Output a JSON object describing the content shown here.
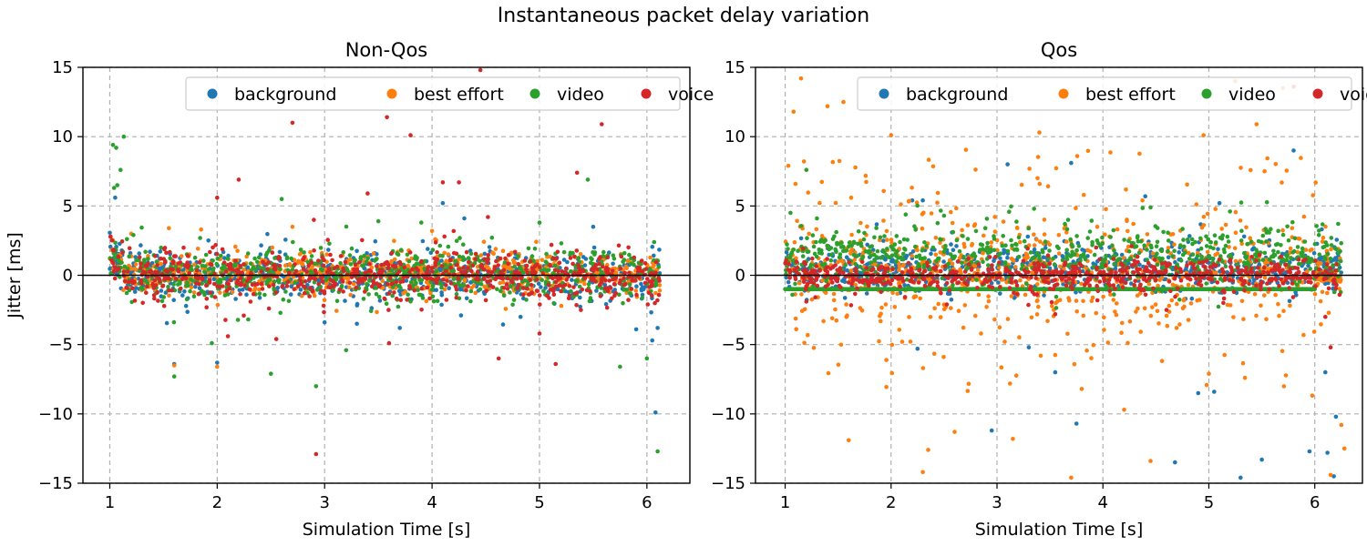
{
  "figure": {
    "suptitle": "Instantaneous packet delay variation"
  },
  "colors": {
    "background": "#1f77b4",
    "best_effort": "#ff7f0e",
    "video": "#2ca02c",
    "voice": "#d62728"
  },
  "chart_data": [
    {
      "type": "scatter",
      "title": "Non-Qos",
      "xlabel": "Simulation Time [s]",
      "ylabel": "Jitter [ms]",
      "xlim": [
        0.75,
        6.4
      ],
      "ylim": [
        -15,
        15
      ],
      "xticks": [
        "1",
        "2",
        "3",
        "4",
        "5",
        "6"
      ],
      "yticks": [
        "15",
        "10",
        "5",
        "0",
        "−5",
        "−10",
        "−15"
      ],
      "grid": true,
      "legend_position": "top-right",
      "legend": [
        "background",
        "best effort",
        "video",
        "voice"
      ],
      "x_range": [
        1.0,
        6.12
      ],
      "series": [
        {
          "name": "background",
          "color": "#1f77b4",
          "band": {
            "center": 0.0,
            "spread": 1.6
          },
          "outliers": [
            [
              1.05,
              5.6
            ],
            [
              1.6,
              -6.4
            ],
            [
              2.0,
              -6.3
            ],
            [
              3.3,
              -3.5
            ],
            [
              3.7,
              -3.8
            ],
            [
              4.1,
              5.2
            ],
            [
              4.3,
              4.1
            ],
            [
              5.9,
              -3.9
            ],
            [
              6.08,
              -9.9
            ],
            [
              6.05,
              -4.7
            ],
            [
              6.1,
              -3.8
            ],
            [
              5.5,
              3.5
            ]
          ]
        },
        {
          "name": "best effort",
          "color": "#ff7f0e",
          "band": {
            "center": 0.2,
            "spread": 1.3
          },
          "outliers": [
            [
              1.6,
              -6.5
            ],
            [
              2.0,
              -6.6
            ],
            [
              1.55,
              3.4
            ],
            [
              1.85,
              3.3
            ],
            [
              2.7,
              3.5
            ],
            [
              1.2,
              3.0
            ],
            [
              4.0,
              3.2
            ]
          ]
        },
        {
          "name": "video",
          "color": "#2ca02c",
          "band": {
            "center": 0.0,
            "spread": 1.7
          },
          "outliers": [
            [
              1.03,
              9.4
            ],
            [
              1.06,
              9.2
            ],
            [
              1.13,
              10.0
            ],
            [
              1.1,
              7.6
            ],
            [
              1.07,
              6.5
            ],
            [
              1.04,
              6.3
            ],
            [
              1.6,
              -7.3
            ],
            [
              1.95,
              -4.9
            ],
            [
              2.5,
              -7.1
            ],
            [
              2.92,
              -8.0
            ],
            [
              3.2,
              -5.4
            ],
            [
              5.45,
              6.9
            ],
            [
              5.75,
              -6.6
            ],
            [
              6.1,
              -12.7
            ],
            [
              6.0,
              -6.0
            ],
            [
              5.0,
              3.8
            ],
            [
              3.9,
              3.8
            ],
            [
              2.6,
              5.5
            ],
            [
              3.5,
              3.9
            ]
          ]
        },
        {
          "name": "voice",
          "color": "#d62728",
          "band": {
            "center": 0.0,
            "spread": 1.5
          },
          "outliers": [
            [
              2.7,
              11.0
            ],
            [
              3.58,
              11.4
            ],
            [
              3.8,
              10.1
            ],
            [
              4.45,
              14.8
            ],
            [
              5.58,
              10.9
            ],
            [
              5.35,
              7.4
            ],
            [
              3.4,
              5.9
            ],
            [
              2.0,
              5.6
            ],
            [
              2.2,
              6.9
            ],
            [
              4.1,
              6.7
            ],
            [
              4.25,
              6.7
            ],
            [
              2.92,
              -12.9
            ],
            [
              3.6,
              -4.9
            ],
            [
              4.62,
              -6.0
            ],
            [
              5.15,
              -6.4
            ],
            [
              5.0,
              -4.2
            ],
            [
              2.55,
              -4.6
            ],
            [
              2.1,
              -4.4
            ],
            [
              2.9,
              4.0
            ],
            [
              4.52,
              4.2
            ]
          ]
        }
      ]
    },
    {
      "type": "scatter",
      "title": "Qos",
      "xlabel": "Simulation Time [s]",
      "ylabel": "",
      "xlim": [
        0.72,
        6.45
      ],
      "ylim": [
        -15,
        15
      ],
      "xticks": [
        "1",
        "2",
        "3",
        "4",
        "5",
        "6"
      ],
      "yticks": [
        "15",
        "10",
        "5",
        "0",
        "−5",
        "−10",
        "−15"
      ],
      "grid": true,
      "legend_position": "top-right",
      "legend": [
        "background",
        "best effort",
        "video",
        "voice"
      ],
      "x_range": [
        1.0,
        6.25
      ],
      "series": [
        {
          "name": "background",
          "color": "#1f77b4",
          "band": {
            "center": 0.5,
            "spread": 1.5
          },
          "outliers": [
            [
              2.25,
              -5.3
            ],
            [
              2.95,
              -11.2
            ],
            [
              3.1,
              8.0
            ],
            [
              3.3,
              -5.2
            ],
            [
              3.55,
              -7.0
            ],
            [
              3.75,
              -10.7
            ],
            [
              3.7,
              8.1
            ],
            [
              4.68,
              -13.5
            ],
            [
              4.9,
              -8.5
            ],
            [
              5.05,
              -8.4
            ],
            [
              5.3,
              -14.6
            ],
            [
              5.5,
              -13.3
            ],
            [
              5.95,
              -12.7
            ],
            [
              6.18,
              -14.5
            ],
            [
              6.12,
              -12.8
            ],
            [
              6.2,
              -10.2
            ],
            [
              5.8,
              9.0
            ],
            [
              4.4,
              5.7
            ],
            [
              5.1,
              5.2
            ],
            [
              2.3,
              5.4
            ],
            [
              2.2,
              5.4
            ],
            [
              6.1,
              -7.0
            ]
          ]
        },
        {
          "name": "best effort",
          "color": "#ff7f0e",
          "band": {
            "center": 0.3,
            "spread": 3.0
          },
          "scatter_spread": 9.0,
          "tail": {
            "x_start": 6.0,
            "x_end": 6.25,
            "center": -0.3,
            "spread": 0.2
          },
          "outliers": [
            [
              1.15,
              14.2
            ],
            [
              1.4,
              12.2
            ],
            [
              1.55,
              12.5
            ],
            [
              1.08,
              11.8
            ],
            [
              1.6,
              -11.9
            ],
            [
              2.3,
              -14.2
            ],
            [
              2.35,
              -12.6
            ],
            [
              2.6,
              -11.3
            ],
            [
              3.15,
              -11.8
            ],
            [
              3.7,
              -14.6
            ],
            [
              4.2,
              -9.7
            ],
            [
              4.45,
              -13.4
            ],
            [
              4.95,
              10.1
            ],
            [
              5.25,
              14.0
            ],
            [
              5.45,
              10.9
            ],
            [
              5.7,
              13.5
            ],
            [
              6.25,
              -10.8
            ],
            [
              6.28,
              -12.5
            ],
            [
              6.15,
              -14.4
            ],
            [
              3.4,
              10.3
            ],
            [
              2.0,
              10.1
            ],
            [
              1.03,
              7.9
            ],
            [
              3.8,
              -8.2
            ],
            [
              5.0,
              -7.1
            ]
          ]
        },
        {
          "name": "video",
          "color": "#2ca02c",
          "band": {
            "center": 1.3,
            "spread": 1.9
          },
          "baseline": {
            "y": -1.0,
            "x_start": 1.0,
            "x_end": 6.0
          },
          "outliers": [
            [
              1.2,
              7.6
            ],
            [
              1.05,
              4.5
            ],
            [
              2.5,
              4.3
            ],
            [
              3.35,
              4.8
            ],
            [
              4.45,
              4.9
            ],
            [
              5.2,
              4.6
            ]
          ]
        },
        {
          "name": "voice",
          "color": "#d62728",
          "band": {
            "center": 0.0,
            "spread": 1.0
          },
          "outliers": [
            [
              5.8,
              13.6
            ],
            [
              3.55,
              -2.8
            ],
            [
              4.6,
              -2.5
            ],
            [
              1.2,
              -1.9
            ],
            [
              6.1,
              -3.0
            ],
            [
              6.15,
              -5.2
            ]
          ]
        }
      ]
    }
  ]
}
